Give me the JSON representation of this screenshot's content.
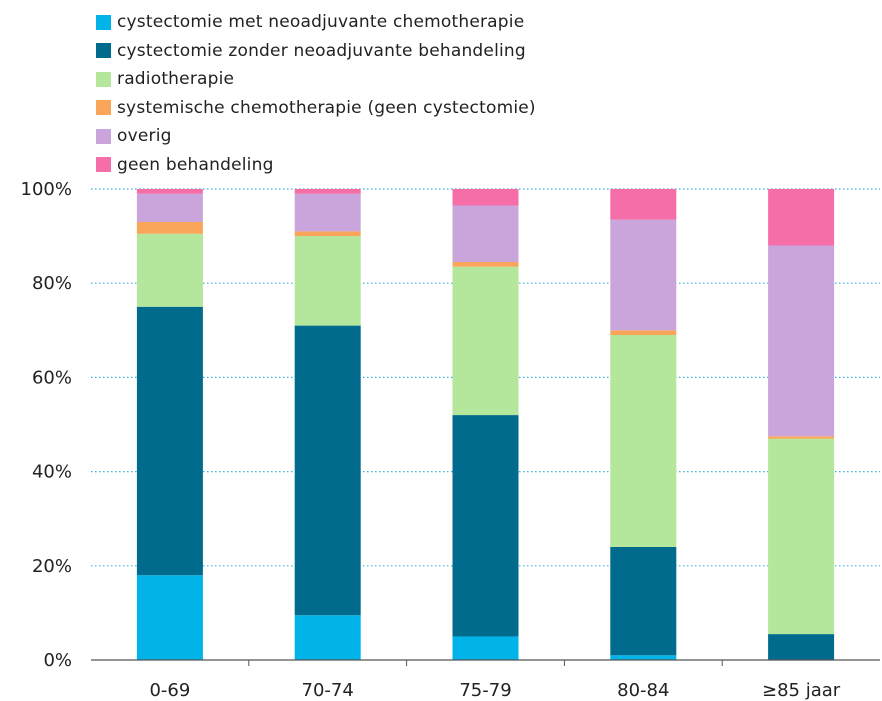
{
  "chart_data": {
    "type": "bar",
    "stacked": true,
    "categories": [
      "0-69",
      "70-74",
      "75-79",
      "80-84",
      "≥85 jaar"
    ],
    "series": [
      {
        "name": "cystectomie met neoadjuvante chemotherapie",
        "color": "#00b4ea",
        "values": [
          18,
          9.5,
          5,
          1,
          0
        ]
      },
      {
        "name": "cystectomie zonder neoadjuvante behandeling",
        "color": "#006b8c",
        "values": [
          57,
          61.5,
          47,
          23,
          5.5
        ]
      },
      {
        "name": "radiotherapie",
        "color": "#b4e69b",
        "values": [
          15.5,
          19,
          31.5,
          45,
          41.5
        ]
      },
      {
        "name": "systemische chemotherapie (geen cystectomie)",
        "color": "#f9a55a",
        "values": [
          2.5,
          1,
          1,
          1,
          0.5
        ]
      },
      {
        "name": "overig",
        "color": "#c9a5db",
        "values": [
          6,
          8,
          12,
          23.5,
          40.5
        ]
      },
      {
        "name": "geen behandeling",
        "color": "#f56ea8",
        "values": [
          1,
          1,
          3.5,
          6.5,
          12
        ]
      }
    ],
    "yticks": [
      "0%",
      "20%",
      "40%",
      "60%",
      "80%",
      "100%"
    ],
    "ylim": [
      0,
      100
    ],
    "grid": "horizontal dotted",
    "legend": "top-left"
  }
}
